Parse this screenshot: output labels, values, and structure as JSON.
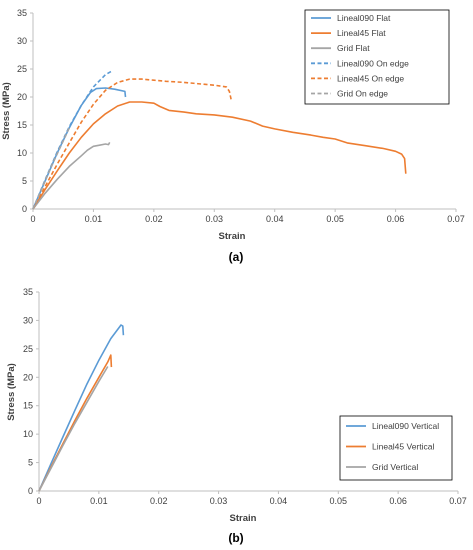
{
  "colors": {
    "blue": "#5b9bd5",
    "orange": "#ed7d31",
    "gray": "#a5a5a5"
  },
  "chart_data": [
    {
      "type": "line",
      "panel_label": "(a)",
      "xlabel": "Strain",
      "ylabel": "Stress (MPa)",
      "xlim": [
        0,
        0.07
      ],
      "ylim": [
        0,
        35
      ],
      "xticks": [
        "0",
        "0.01",
        "0.02",
        "0.03",
        "0.04",
        "0.05",
        "0.06",
        "0.07"
      ],
      "yticks": [
        "0",
        "5",
        "10",
        "15",
        "20",
        "25",
        "30",
        "35"
      ],
      "legend_position": "top-right",
      "series": [
        {
          "name": "Lineal090 Flat",
          "color": "#5b9bd5",
          "dash": "solid",
          "points": [
            [
              0,
              0
            ],
            [
              0.002,
              5
            ],
            [
              0.004,
              10
            ],
            [
              0.006,
              14.5
            ],
            [
              0.008,
              18.5
            ],
            [
              0.0095,
              20.8
            ],
            [
              0.0105,
              21.5
            ],
            [
              0.012,
              21.6
            ],
            [
              0.0135,
              21.4
            ],
            [
              0.0152,
              21.0
            ],
            [
              0.0153,
              20.0
            ]
          ]
        },
        {
          "name": "Lineal45 Flat",
          "color": "#ed7d31",
          "dash": "solid",
          "points": [
            [
              0,
              0
            ],
            [
              0.002,
              3.5
            ],
            [
              0.004,
              6.8
            ],
            [
              0.006,
              10
            ],
            [
              0.008,
              12.8
            ],
            [
              0.01,
              15.2
            ],
            [
              0.012,
              17.0
            ],
            [
              0.014,
              18.4
            ],
            [
              0.016,
              19.1
            ],
            [
              0.018,
              19.1
            ],
            [
              0.02,
              18.9
            ],
            [
              0.021,
              18.3
            ],
            [
              0.0225,
              17.6
            ],
            [
              0.025,
              17.3
            ],
            [
              0.027,
              17.0
            ],
            [
              0.03,
              16.8
            ],
            [
              0.033,
              16.4
            ],
            [
              0.036,
              15.7
            ],
            [
              0.038,
              14.8
            ],
            [
              0.04,
              14.3
            ],
            [
              0.043,
              13.7
            ],
            [
              0.046,
              13.2
            ],
            [
              0.048,
              12.8
            ],
            [
              0.05,
              12.5
            ],
            [
              0.052,
              11.8
            ],
            [
              0.055,
              11.3
            ],
            [
              0.058,
              10.8
            ],
            [
              0.06,
              10.3
            ],
            [
              0.061,
              9.8
            ],
            [
              0.0615,
              9.0
            ],
            [
              0.0617,
              6.3
            ]
          ]
        },
        {
          "name": "Grid Flat",
          "color": "#a5a5a5",
          "dash": "solid",
          "points": [
            [
              0,
              0
            ],
            [
              0.002,
              2.8
            ],
            [
              0.004,
              5.3
            ],
            [
              0.006,
              7.6
            ],
            [
              0.008,
              9.5
            ],
            [
              0.009,
              10.5
            ],
            [
              0.01,
              11.2
            ],
            [
              0.011,
              11.4
            ],
            [
              0.012,
              11.6
            ],
            [
              0.0125,
              11.5
            ],
            [
              0.0127,
              11.9
            ]
          ]
        },
        {
          "name": "Lineal090 On edge",
          "color": "#5b9bd5",
          "dash": "dashed",
          "points": [
            [
              0,
              0
            ],
            [
              0.002,
              5.2
            ],
            [
              0.004,
              10.2
            ],
            [
              0.006,
              14.7
            ],
            [
              0.008,
              18.5
            ],
            [
              0.01,
              21.8
            ],
            [
              0.012,
              24.0
            ],
            [
              0.013,
              24.6
            ]
          ]
        },
        {
          "name": "Lineal45 On edge",
          "color": "#ed7d31",
          "dash": "dashed",
          "points": [
            [
              0,
              0
            ],
            [
              0.002,
              4.0
            ],
            [
              0.004,
              8.0
            ],
            [
              0.006,
              11.8
            ],
            [
              0.008,
              15.5
            ],
            [
              0.01,
              18.7
            ],
            [
              0.012,
              21.2
            ],
            [
              0.014,
              22.6
            ],
            [
              0.016,
              23.2
            ],
            [
              0.018,
              23.2
            ],
            [
              0.02,
              23.0
            ],
            [
              0.022,
              22.8
            ],
            [
              0.025,
              22.6
            ],
            [
              0.028,
              22.3
            ],
            [
              0.03,
              22.1
            ],
            [
              0.032,
              21.8
            ],
            [
              0.0325,
              21.0
            ],
            [
              0.0328,
              19.5
            ]
          ]
        },
        {
          "name": "Grid On edge",
          "color": "#a5a5a5",
          "dash": "dashed",
          "points": [
            [
              0,
              0
            ],
            [
              0.003,
              7.5
            ],
            [
              0.006,
              14.5
            ]
          ]
        }
      ]
    },
    {
      "type": "line",
      "panel_label": "(b)",
      "xlabel": "Strain",
      "ylabel": "Stress (MPa)",
      "xlim": [
        0,
        0.07
      ],
      "ylim": [
        0,
        35
      ],
      "xticks": [
        "0",
        "0.01",
        "0.02",
        "0.03",
        "0.04",
        "0.05",
        "0.06",
        "0.07"
      ],
      "yticks": [
        "0",
        "5",
        "10",
        "15",
        "20",
        "25",
        "30",
        "35"
      ],
      "legend_position": "right",
      "series": [
        {
          "name": "Lineal090 Vertical",
          "color": "#5b9bd5",
          "dash": "solid",
          "points": [
            [
              0,
              0
            ],
            [
              0.002,
              4.8
            ],
            [
              0.004,
              9.5
            ],
            [
              0.006,
              14.2
            ],
            [
              0.008,
              18.8
            ],
            [
              0.01,
              23.0
            ],
            [
              0.012,
              26.8
            ],
            [
              0.0137,
              29.2
            ],
            [
              0.014,
              29.0
            ],
            [
              0.0141,
              27.4
            ]
          ]
        },
        {
          "name": "Lineal45 Vertical",
          "color": "#ed7d31",
          "dash": "solid",
          "points": [
            [
              0,
              0
            ],
            [
              0.002,
              4.2
            ],
            [
              0.004,
              8.3
            ],
            [
              0.006,
              12.4
            ],
            [
              0.008,
              16.3
            ],
            [
              0.01,
              20.0
            ],
            [
              0.0115,
              22.7
            ],
            [
              0.012,
              23.9
            ],
            [
              0.0121,
              21.8
            ]
          ]
        },
        {
          "name": "Grid Vertical",
          "color": "#a5a5a5",
          "dash": "solid",
          "points": [
            [
              0,
              0
            ],
            [
              0.002,
              4.0
            ],
            [
              0.004,
              8.0
            ],
            [
              0.006,
              11.9
            ],
            [
              0.008,
              15.6
            ],
            [
              0.01,
              19.3
            ],
            [
              0.0115,
              21.9
            ]
          ]
        }
      ]
    }
  ]
}
